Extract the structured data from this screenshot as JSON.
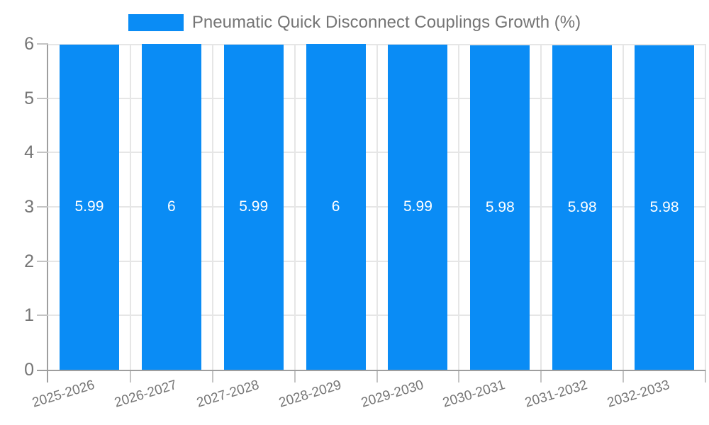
{
  "legend": {
    "series_label": "Pneumatic Quick Disconnect Couplings Growth (%)"
  },
  "chart_data": {
    "type": "bar",
    "title": "Pneumatic Quick Disconnect Couplings Growth (%)",
    "categories": [
      "2025-2026",
      "2026-2027",
      "2027-2028",
      "2028-2029",
      "2029-2030",
      "2030-2031",
      "2031-2032",
      "2032-2033"
    ],
    "values": [
      5.99,
      6,
      5.99,
      6,
      5.99,
      5.98,
      5.98,
      5.98
    ],
    "value_labels": [
      "5.99",
      "6",
      "5.99",
      "6",
      "5.99",
      "5.98",
      "5.98",
      "5.98"
    ],
    "xlabel": "",
    "ylabel": "",
    "ylim": [
      0,
      6
    ],
    "yticks": [
      0,
      1,
      2,
      3,
      4,
      5,
      6
    ],
    "ytick_labels": [
      "0",
      "1",
      "2",
      "3",
      "4",
      "5",
      "6"
    ],
    "grid": true,
    "legend_position": "top-center",
    "value_label_position": "center-of-bar"
  },
  "colors": {
    "bar": "#0a8cf5",
    "axis_text": "#757575",
    "value_label_text": "#ffffff",
    "gridline": "#e6e6e6",
    "axis_line": "#9e9e9e",
    "tick": "#c4c4c4",
    "background": "#ffffff"
  }
}
